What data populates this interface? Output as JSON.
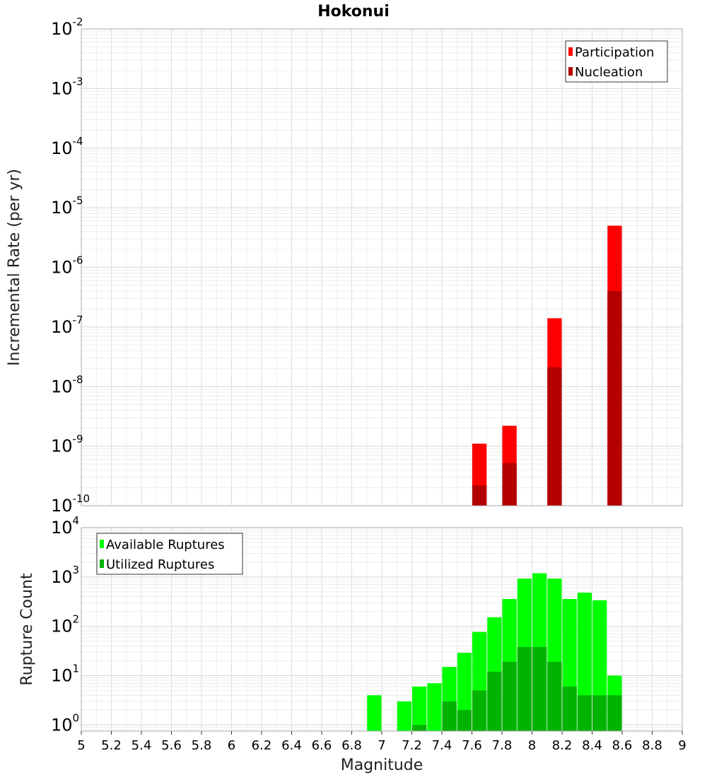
{
  "chart_data": [
    {
      "type": "bar",
      "title": "Hokonui",
      "xlabel": "",
      "ylabel": "Incremental Rate (per yr)",
      "xlim": [
        5,
        9
      ],
      "ylim": [
        1e-10,
        0.01
      ],
      "yscale": "log",
      "grid": true,
      "legend_position": "top-right",
      "y_tick_exponents": [
        "-10",
        "-9",
        "-8",
        "-7",
        "-6",
        "-5",
        "-4",
        "-3",
        "-2"
      ],
      "bar_width": 0.1,
      "series": [
        {
          "name": "Participation",
          "color": "#ff0000",
          "x": [
            7.65,
            7.85,
            8.15,
            8.55
          ],
          "values": [
            1.1e-09,
            2.2e-09,
            1.4e-07,
            5e-06
          ]
        },
        {
          "name": "Nucleation",
          "color": "#b30000",
          "x": [
            7.65,
            7.85,
            8.15,
            8.55
          ],
          "values": [
            2.2e-10,
            5.2e-10,
            2.1e-08,
            4e-07
          ]
        }
      ]
    },
    {
      "type": "bar",
      "title": "",
      "xlabel": "Magnitude",
      "ylabel": "Rupture Count",
      "xlim": [
        5,
        9
      ],
      "ylim": [
        0.75,
        10000
      ],
      "yscale": "log",
      "grid": true,
      "legend_position": "top-left",
      "y_tick_exponents": [
        "0",
        "1",
        "2",
        "3",
        "4"
      ],
      "x_ticks": [
        "5",
        "5.2",
        "5.4",
        "5.6",
        "5.8",
        "6",
        "6.2",
        "6.4",
        "6.6",
        "6.8",
        "7",
        "7.2",
        "7.4",
        "7.6",
        "7.8",
        "8",
        "8.2",
        "8.4",
        "8.6",
        "8.8",
        "9"
      ],
      "bar_width": 0.1,
      "series": [
        {
          "name": "Available Ruptures",
          "color": "#00ff00",
          "x": [
            6.95,
            7.15,
            7.25,
            7.35,
            7.45,
            7.55,
            7.65,
            7.75,
            7.85,
            7.95,
            8.05,
            8.15,
            8.25,
            8.35,
            8.45,
            8.55
          ],
          "values": [
            4,
            3,
            6,
            7,
            15,
            29,
            77,
            153,
            357,
            929,
            1190,
            929,
            357,
            480,
            337,
            10
          ]
        },
        {
          "name": "Utilized Ruptures",
          "color": "#00b300",
          "x": [
            7.25,
            7.45,
            7.55,
            7.65,
            7.75,
            7.85,
            7.95,
            8.05,
            8.15,
            8.25,
            8.35,
            8.45,
            8.55
          ],
          "values": [
            1,
            3,
            2,
            5,
            12,
            19,
            38,
            38,
            19,
            6,
            4,
            4,
            4
          ]
        }
      ]
    }
  ]
}
